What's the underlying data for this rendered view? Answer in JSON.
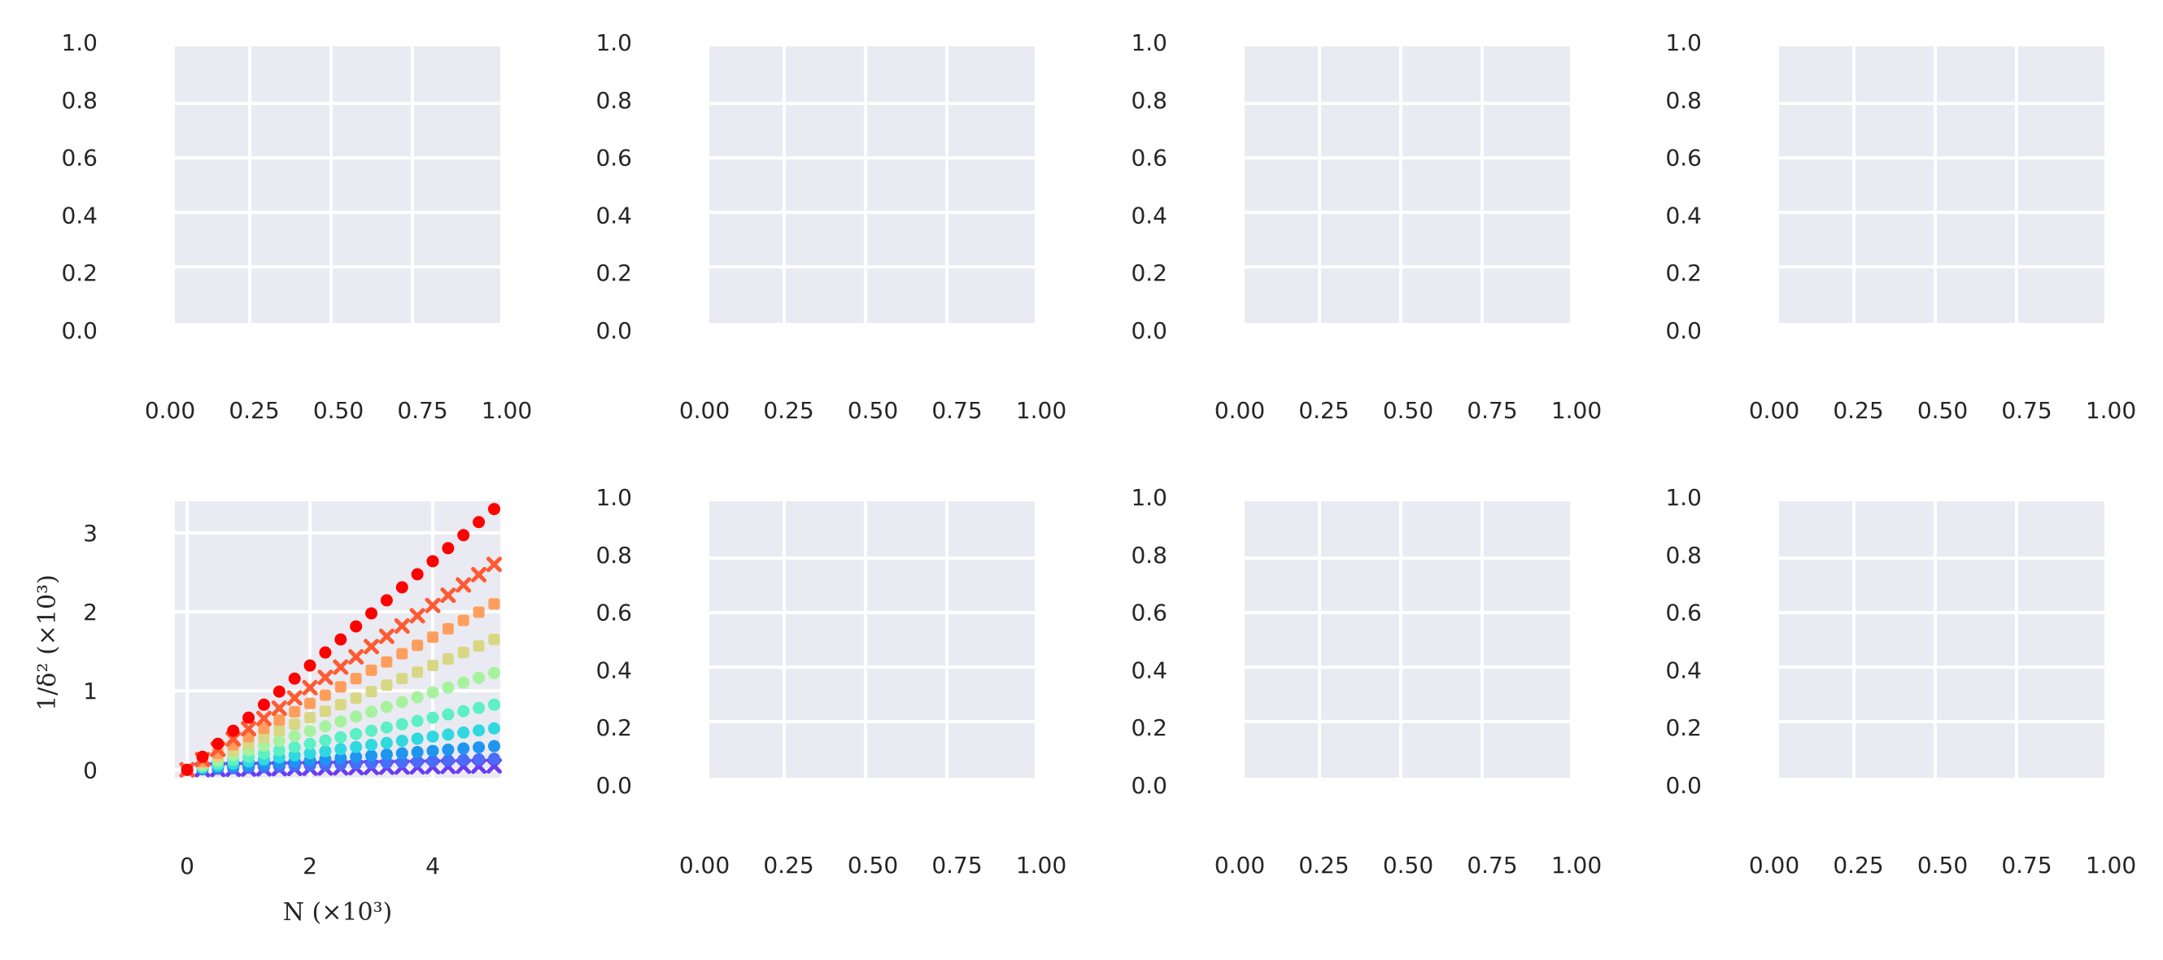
{
  "figure": {
    "background": "#ffffff",
    "panel_background": "#eaeaf2",
    "grid_color": "#ffffff"
  },
  "chart_data": [
    {
      "type": "scatter",
      "title": "",
      "xlabel": "",
      "ylabel": "",
      "xlim": [
        0,
        1
      ],
      "ylim": [
        0,
        1
      ],
      "grid": true,
      "xticks": [
        "0.00",
        "0.25",
        "0.50",
        "0.75",
        "1.00"
      ],
      "yticks": [
        "0.0",
        "0.2",
        "0.4",
        "0.6",
        "0.8",
        "1.0"
      ],
      "series": []
    },
    {
      "type": "scatter",
      "title": "",
      "xlabel": "",
      "ylabel": "",
      "xlim": [
        0,
        1
      ],
      "ylim": [
        0,
        1
      ],
      "grid": true,
      "xticks": [
        "0.00",
        "0.25",
        "0.50",
        "0.75",
        "1.00"
      ],
      "yticks": [
        "0.0",
        "0.2",
        "0.4",
        "0.6",
        "0.8",
        "1.0"
      ],
      "series": []
    },
    {
      "type": "scatter",
      "title": "",
      "xlabel": "",
      "ylabel": "",
      "xlim": [
        0,
        1
      ],
      "ylim": [
        0,
        1
      ],
      "grid": true,
      "xticks": [
        "0.00",
        "0.25",
        "0.50",
        "0.75",
        "1.00"
      ],
      "yticks": [
        "0.0",
        "0.2",
        "0.4",
        "0.6",
        "0.8",
        "1.0"
      ],
      "series": []
    },
    {
      "type": "scatter",
      "title": "",
      "xlabel": "",
      "ylabel": "",
      "xlim": [
        0,
        1
      ],
      "ylim": [
        0,
        1
      ],
      "grid": true,
      "xticks": [
        "0.00",
        "0.25",
        "0.50",
        "0.75",
        "1.00"
      ],
      "yticks": [
        "0.0",
        "0.2",
        "0.4",
        "0.6",
        "0.8",
        "1.0"
      ],
      "series": []
    },
    {
      "type": "scatter",
      "title": "",
      "xlabel": "N (×10³)",
      "ylabel": "1/δ² (×10³)",
      "xlim": [
        -0.2,
        5.1
      ],
      "ylim": [
        -0.1,
        3.4
      ],
      "grid": true,
      "xticks": [
        "0",
        "2",
        "4"
      ],
      "yticks": [
        "0",
        "1",
        "2",
        "3"
      ],
      "x": [
        0,
        0.25,
        0.5,
        0.75,
        1.0,
        1.25,
        1.5,
        1.75,
        2.0,
        2.25,
        2.5,
        2.75,
        3.0,
        3.25,
        3.5,
        3.75,
        4.0,
        4.25,
        4.5,
        4.75,
        5.0
      ],
      "series": [
        {
          "slope": 0.66,
          "color": "#ff0000",
          "marker": "circle"
        },
        {
          "slope": 0.52,
          "color": "#ff5a32",
          "marker": "x"
        },
        {
          "slope": 0.42,
          "color": "#ff9e5c",
          "marker": "square"
        },
        {
          "slope": 0.33,
          "color": "#d8d884",
          "marker": "square"
        },
        {
          "slope": 0.245,
          "color": "#a6f29e",
          "marker": "circle"
        },
        {
          "slope": 0.165,
          "color": "#5cf0c4",
          "marker": "circle"
        },
        {
          "slope": 0.105,
          "color": "#30d8e0",
          "marker": "circle"
        },
        {
          "slope": 0.06,
          "color": "#1e96f0",
          "marker": "circle"
        },
        {
          "slope": 0.028,
          "color": "#4a6cf8",
          "marker": "circle"
        },
        {
          "slope": 0.01,
          "color": "#6a3cf4",
          "marker": "x"
        }
      ]
    },
    {
      "type": "scatter",
      "title": "",
      "xlabel": "",
      "ylabel": "",
      "xlim": [
        0,
        1
      ],
      "ylim": [
        0,
        1
      ],
      "grid": true,
      "xticks": [
        "0.00",
        "0.25",
        "0.50",
        "0.75",
        "1.00"
      ],
      "yticks": [
        "0.0",
        "0.2",
        "0.4",
        "0.6",
        "0.8",
        "1.0"
      ],
      "series": []
    },
    {
      "type": "scatter",
      "title": "",
      "xlabel": "",
      "ylabel": "",
      "xlim": [
        0,
        1
      ],
      "ylim": [
        0,
        1
      ],
      "grid": true,
      "xticks": [
        "0.00",
        "0.25",
        "0.50",
        "0.75",
        "1.00"
      ],
      "yticks": [
        "0.0",
        "0.2",
        "0.4",
        "0.6",
        "0.8",
        "1.0"
      ],
      "series": []
    },
    {
      "type": "scatter",
      "title": "",
      "xlabel": "",
      "ylabel": "",
      "xlim": [
        0,
        1
      ],
      "ylim": [
        0,
        1
      ],
      "grid": true,
      "xticks": [
        "0.00",
        "0.25",
        "0.50",
        "0.75",
        "1.00"
      ],
      "yticks": [
        "0.0",
        "0.2",
        "0.4",
        "0.6",
        "0.8",
        "1.0"
      ],
      "series": []
    }
  ]
}
